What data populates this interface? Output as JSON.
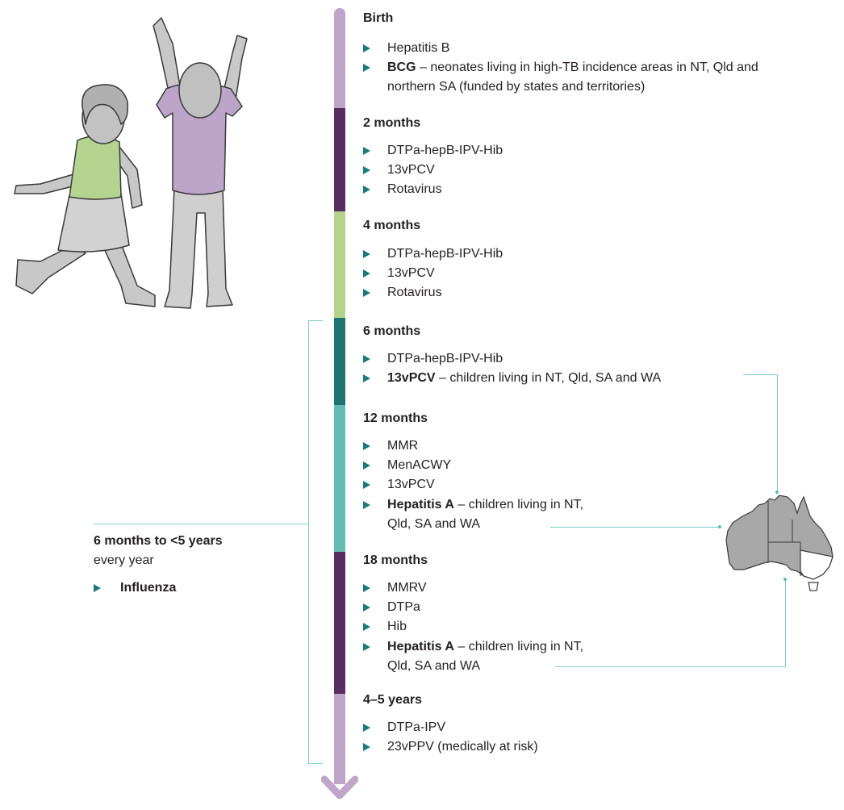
{
  "colors": {
    "seg_birth": "#bfa6c9",
    "seg_2m": "#5a2d62",
    "seg_4m": "#b4d48e",
    "seg_6m": "#1d7470",
    "seg_12m": "#64bdb4",
    "seg_18m": "#5a2d62",
    "seg_45y": "#bfa6c9",
    "bullet": "#1d7a7a",
    "connector": "#7fcdc6"
  },
  "stages": [
    {
      "label": "Birth",
      "items": [
        {
          "bold": "",
          "text": "Hepatitis B"
        },
        {
          "bold": "BCG",
          "text": " – neonates living in high-TB incidence areas in NT, Qld and northern SA (funded by states and territories)"
        }
      ]
    },
    {
      "label": "2 months",
      "items": [
        {
          "bold": "",
          "text": "DTPa-hepB-IPV-Hib"
        },
        {
          "bold": "",
          "text": "13vPCV"
        },
        {
          "bold": "",
          "text": "Rotavirus"
        }
      ]
    },
    {
      "label": "4 months",
      "items": [
        {
          "bold": "",
          "text": "DTPa-hepB-IPV-Hib"
        },
        {
          "bold": "",
          "text": "13vPCV"
        },
        {
          "bold": "",
          "text": "Rotavirus"
        }
      ]
    },
    {
      "label": "6 months",
      "items": [
        {
          "bold": "",
          "text": "DTPa-hepB-IPV-Hib"
        },
        {
          "bold": "13vPCV",
          "text": " – children living in NT, Qld, SA and WA"
        }
      ]
    },
    {
      "label": "12 months",
      "items": [
        {
          "bold": "",
          "text": "MMR"
        },
        {
          "bold": "",
          "text": "MenACWY"
        },
        {
          "bold": "",
          "text": "13vPCV"
        },
        {
          "bold": "Hepatitis A",
          "text": " – children living in NT, Qld, SA and WA"
        }
      ]
    },
    {
      "label": "18 months",
      "items": [
        {
          "bold": "",
          "text": "MMRV"
        },
        {
          "bold": "",
          "text": "DTPa"
        },
        {
          "bold": "",
          "text": "Hib"
        },
        {
          "bold": "Hepatitis A",
          "text": " – children living in NT, Qld, SA and WA"
        }
      ]
    },
    {
      "label": "4–5 years",
      "items": [
        {
          "bold": "",
          "text": "DTPa-IPV"
        },
        {
          "bold": "",
          "text": "23vPPV (medically at risk)"
        }
      ]
    }
  ],
  "influenza": {
    "label": "6 months to <5 years",
    "frequency": "every year",
    "vaccine": "Influenza"
  }
}
